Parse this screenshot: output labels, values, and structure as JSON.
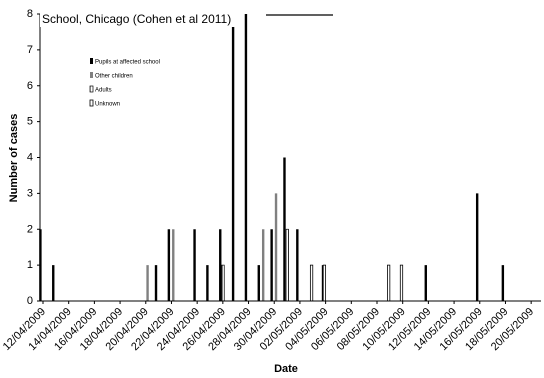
{
  "chart_data": {
    "type": "bar",
    "title": "School, Chicago (Cohen et al 2011)",
    "xlabel": "Date",
    "ylabel": "Number of cases",
    "ylim": [
      0,
      8
    ],
    "yticks": [
      0,
      1,
      2,
      3,
      4,
      5,
      6,
      7,
      8
    ],
    "xlim": [
      "2009-04-12",
      "2009-05-21"
    ],
    "xtick_labels": [
      "12/04/2009",
      "14/04/2009",
      "16/04/2009",
      "18/04/2009",
      "20/04/2009",
      "22/04/2009",
      "24/04/2009",
      "26/04/2009",
      "28/04/2009",
      "30/04/2009",
      "02/05/2009",
      "04/05/2009",
      "06/05/2009",
      "08/05/2009",
      "10/05/2009",
      "12/05/2009",
      "14/05/2009",
      "16/05/2009",
      "18/05/2009",
      "20/05/2009"
    ],
    "grid": false,
    "legend_position": "top-left",
    "series": [
      {
        "name": "Pupils at affected school",
        "color": "#000000",
        "fill": "solid",
        "points": [
          [
            "2009-04-12",
            2
          ],
          [
            "2009-04-13",
            1
          ],
          [
            "2009-04-21",
            1
          ],
          [
            "2009-04-22",
            2
          ],
          [
            "2009-04-24",
            2
          ],
          [
            "2009-04-25",
            1
          ],
          [
            "2009-04-26",
            2
          ],
          [
            "2009-04-27",
            8
          ],
          [
            "2009-04-28",
            8
          ],
          [
            "2009-04-29",
            1
          ],
          [
            "2009-04-30",
            2
          ],
          [
            "2009-05-01",
            4
          ],
          [
            "2009-05-02",
            2
          ],
          [
            "2009-05-04",
            1
          ],
          [
            "2009-05-12",
            1
          ],
          [
            "2009-05-16",
            3
          ],
          [
            "2009-05-18",
            1
          ]
        ]
      },
      {
        "name": "Other children",
        "color": "#808080",
        "fill": "solid",
        "points": [
          [
            "2009-04-20",
            1
          ],
          [
            "2009-04-22",
            2
          ],
          [
            "2009-04-29",
            2
          ],
          [
            "2009-04-30",
            3
          ]
        ]
      },
      {
        "name": "Adults",
        "color": "#000000",
        "fill": "hatched",
        "points": [
          [
            "2009-04-26",
            1
          ],
          [
            "2009-05-01",
            2
          ]
        ]
      },
      {
        "name": "Unknown",
        "color": "#000000",
        "fill": "hollow",
        "points": [
          [
            "2009-05-03",
            1
          ],
          [
            "2009-05-04",
            1
          ],
          [
            "2009-05-09",
            1
          ],
          [
            "2009-05-10",
            1
          ]
        ]
      }
    ]
  }
}
